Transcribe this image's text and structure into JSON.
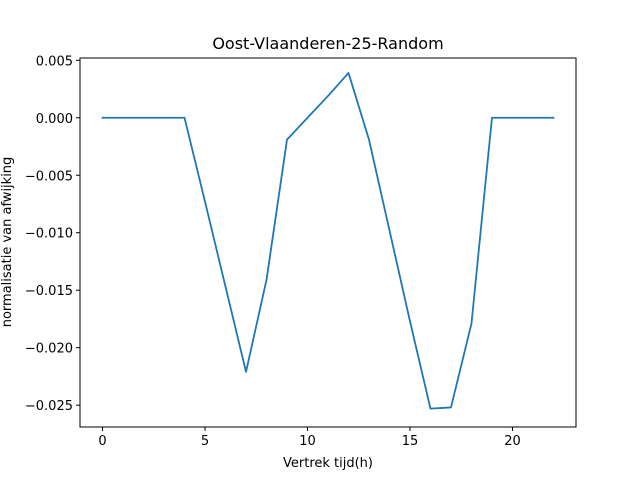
{
  "chart_data": {
    "type": "line",
    "title": "Oost-Vlaanderen-25-Random",
    "xlabel": "Vertrek tijd(h)",
    "ylabel": "normalisatie van afwijking",
    "xlim": [
      -1.1,
      23.1
    ],
    "ylim": [
      -0.0269,
      0.0052
    ],
    "xticks": [
      0,
      5,
      10,
      15,
      20
    ],
    "xtick_labels": [
      "0",
      "5",
      "10",
      "15",
      "20"
    ],
    "yticks": [
      0.005,
      0.0,
      -0.005,
      -0.01,
      -0.015,
      -0.02,
      -0.025
    ],
    "ytick_labels": [
      "0.005",
      "0.000",
      "−0.005",
      "−0.010",
      "−0.015",
      "−0.020",
      "−0.025"
    ],
    "grid": false,
    "series": [
      {
        "color": "#1f77b4",
        "x": [
          0,
          1,
          2,
          3,
          4,
          5,
          6,
          7,
          8,
          9,
          10,
          11,
          12,
          13,
          14,
          15,
          16,
          17,
          18,
          19,
          20,
          21,
          22
        ],
        "y": [
          0.0,
          0.0,
          0.0,
          0.0,
          0.0,
          -0.0073,
          -0.0147,
          -0.0221,
          -0.0141,
          -0.0019,
          0.0,
          0.0019,
          0.0039,
          -0.0019,
          -0.0098,
          -0.0177,
          -0.0253,
          -0.0252,
          -0.0179,
          0.0,
          0.0,
          0.0,
          0.0
        ]
      }
    ]
  }
}
